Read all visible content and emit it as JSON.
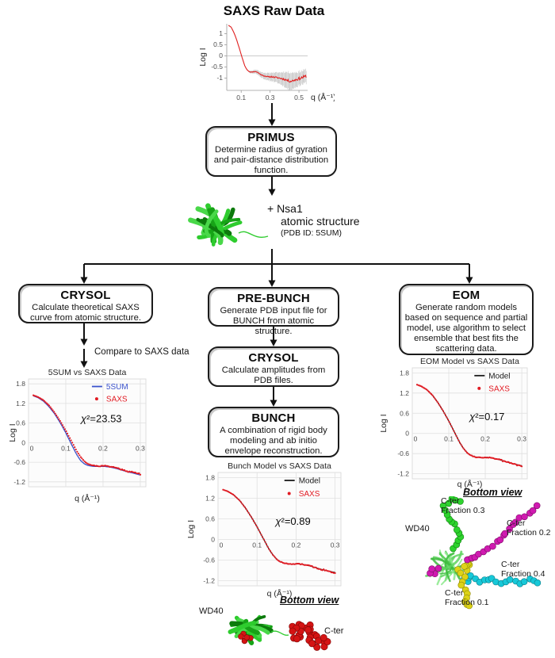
{
  "page": {
    "background": "#ffffff"
  },
  "flow": {
    "nsa1": {
      "line1": "+ Nsa1",
      "line2": "atomic structure",
      "line3": "(PDB ID: 5SUM)"
    },
    "compare_label": "Compare to SAXS data",
    "boxes": {
      "primus": {
        "title": "PRIMUS",
        "body": "Determine radius of gyration and pair-distance distribution function."
      },
      "crysol_left": {
        "title": "CRYSOL",
        "body": "Calculate theoretical SAXS curve from atomic structure."
      },
      "prebunch": {
        "title": "PRE-BUNCH",
        "body": "Generate PDB input file for BUNCH from atomic structure."
      },
      "crysol_mid": {
        "title": "CRYSOL",
        "body": "Calculate amplitudes from PDB files."
      },
      "bunch": {
        "title": "BUNCH",
        "body": "A combination of rigid body modeling and ab initio envelope reconstruction."
      },
      "eom": {
        "title": "EOM",
        "body": "Generate random models based on sequence and partial model, use algorithm to select ensemble that best fits the scattering data."
      }
    }
  },
  "bottom_mid": {
    "view_label": "Bottom view",
    "wd40": "WD40",
    "cter": "C-ter"
  },
  "bottom_right": {
    "view_label": "Bottom view",
    "wd40": "WD40",
    "f03": {
      "line1": "C-ter",
      "line2": "Fraction 0.3"
    },
    "f02": {
      "line1": "C-ter",
      "line2": "Fraction 0.2"
    },
    "f04": {
      "line1": "C-ter",
      "line2": "Fraction 0.4"
    },
    "f01": {
      "line1": "C-ter",
      "line2": "Fraction 0.1"
    }
  },
  "colors": {
    "saxs_red": "#e11b23",
    "model_blue": "#3a52cc",
    "model_black": "#1a1a1a",
    "protein_green_dark": "#17a317",
    "protein_green_light": "#49d849",
    "chain_green": "#2ed32e",
    "chain_magenta": "#d01ab0",
    "chain_cyan": "#17c8d8",
    "chain_yellow": "#ddd316",
    "cter_red": "#d41414"
  },
  "chart_data": [
    {
      "id": "chart-raw",
      "type": "line",
      "style": "raw",
      "title": "SAXS Raw Data",
      "xlabel": "q (Å⁻¹)",
      "ylabel": "Log I",
      "xlim": [
        0,
        0.56
      ],
      "ylim": [
        -1.55,
        1.45
      ],
      "xticks": [
        0.1,
        0.3,
        0.5
      ],
      "yticks": [
        1,
        0.5,
        0,
        -0.5,
        -1
      ],
      "seed": 11,
      "legend": null,
      "chi2_label": null,
      "chi2_pos": null,
      "grid": false,
      "series": [
        {
          "name": "SAXS raw",
          "type": "line",
          "color": "#e02020",
          "width": 1.1,
          "jitter": 0.012,
          "errorbars": true,
          "anchors": [
            [
              0.012,
              1.38
            ],
            [
              0.03,
              1.3
            ],
            [
              0.05,
              1.05
            ],
            [
              0.07,
              0.7
            ],
            [
              0.09,
              0.28
            ],
            [
              0.11,
              -0.15
            ],
            [
              0.125,
              -0.45
            ],
            [
              0.14,
              -0.62
            ],
            [
              0.155,
              -0.7
            ],
            [
              0.17,
              -0.73
            ],
            [
              0.185,
              -0.71
            ],
            [
              0.2,
              -0.7
            ],
            [
              0.215,
              -0.74
            ],
            [
              0.23,
              -0.82
            ],
            [
              0.25,
              -0.88
            ],
            [
              0.27,
              -0.91
            ],
            [
              0.29,
              -0.95
            ],
            [
              0.31,
              -0.93
            ],
            [
              0.33,
              -0.96
            ],
            [
              0.36,
              -0.99
            ],
            [
              0.39,
              -1.03
            ],
            [
              0.42,
              -1.1
            ],
            [
              0.44,
              -1.14
            ],
            [
              0.46,
              -1.11
            ],
            [
              0.48,
              -1.06
            ],
            [
              0.5,
              -1.02
            ],
            [
              0.52,
              -0.98
            ],
            [
              0.55,
              -0.91
            ]
          ]
        }
      ]
    },
    {
      "id": "chart-5sum",
      "type": "line+scatter",
      "style": "excel",
      "title": "5SUM vs SAXS Data",
      "xlabel": "q (Å⁻¹)",
      "ylabel": "Log I",
      "xlim": [
        0,
        0.315
      ],
      "ylim": [
        -1.35,
        1.95
      ],
      "xticks": [
        0,
        0.1,
        0.2,
        0.3
      ],
      "yticks": [
        1.8,
        1.2,
        0.6,
        0,
        -0.6,
        -1.2
      ],
      "seed": 21,
      "grid": true,
      "legend": [
        {
          "label": "5SUM",
          "color": "#3a52cc",
          "marker": "line"
        },
        {
          "label": "SAXS",
          "color": "#e11b23",
          "marker": "dot"
        }
      ],
      "chi2_label": "χ²=23.53",
      "chi2_pos": [
        0.62,
        0.4
      ],
      "series": [
        {
          "name": "5SUM",
          "type": "line",
          "color": "#3a52cc",
          "width": 1.3,
          "anchors": [
            [
              0.013,
              1.43
            ],
            [
              0.025,
              1.38
            ],
            [
              0.04,
              1.27
            ],
            [
              0.055,
              1.1
            ],
            [
              0.07,
              0.88
            ],
            [
              0.085,
              0.61
            ],
            [
              0.1,
              0.3
            ],
            [
              0.115,
              -0.05
            ],
            [
              0.13,
              -0.38
            ],
            [
              0.14,
              -0.55
            ],
            [
              0.15,
              -0.65
            ],
            [
              0.16,
              -0.7
            ],
            [
              0.17,
              -0.72
            ],
            [
              0.18,
              -0.73
            ],
            [
              0.19,
              -0.73
            ],
            [
              0.205,
              -0.73
            ],
            [
              0.22,
              -0.75
            ],
            [
              0.235,
              -0.79
            ],
            [
              0.25,
              -0.84
            ],
            [
              0.265,
              -0.89
            ],
            [
              0.28,
              -0.93
            ],
            [
              0.3,
              -0.99
            ]
          ]
        },
        {
          "name": "SAXS",
          "type": "scatter",
          "color": "#e11b23",
          "jitter": 0.011,
          "anchors": [
            [
              0.013,
              1.45
            ],
            [
              0.025,
              1.4
            ],
            [
              0.04,
              1.3
            ],
            [
              0.055,
              1.14
            ],
            [
              0.07,
              0.92
            ],
            [
              0.085,
              0.66
            ],
            [
              0.1,
              0.37
            ],
            [
              0.115,
              0.05
            ],
            [
              0.13,
              -0.27
            ],
            [
              0.14,
              -0.44
            ],
            [
              0.15,
              -0.57
            ],
            [
              0.16,
              -0.65
            ],
            [
              0.17,
              -0.69
            ],
            [
              0.18,
              -0.71
            ],
            [
              0.19,
              -0.72
            ],
            [
              0.205,
              -0.71
            ],
            [
              0.22,
              -0.73
            ],
            [
              0.235,
              -0.77
            ],
            [
              0.25,
              -0.82
            ],
            [
              0.265,
              -0.87
            ],
            [
              0.28,
              -0.91
            ],
            [
              0.3,
              -0.96
            ]
          ]
        }
      ]
    },
    {
      "id": "chart-bunch",
      "type": "line+scatter",
      "style": "excel",
      "title": "Bunch Model vs SAXS Data",
      "xlabel": "q (Å⁻¹)",
      "ylabel": "Log I",
      "xlim": [
        0,
        0.315
      ],
      "ylim": [
        -1.35,
        1.95
      ],
      "xticks": [
        0,
        0.1,
        0.2,
        0.3
      ],
      "yticks": [
        1.8,
        1.2,
        0.6,
        0,
        -0.6,
        -1.2
      ],
      "seed": 33,
      "grid": true,
      "legend": [
        {
          "label": "Model",
          "color": "#1a1a1a",
          "marker": "line"
        },
        {
          "label": "SAXS",
          "color": "#e11b23",
          "marker": "dot"
        }
      ],
      "chi2_label": "χ²=0.89",
      "chi2_pos": [
        0.61,
        0.46
      ],
      "series": [
        {
          "name": "Model",
          "type": "line",
          "color": "#1a1a1a",
          "width": 1.2,
          "anchors": [
            [
              0.013,
              1.45
            ],
            [
              0.025,
              1.4
            ],
            [
              0.04,
              1.3
            ],
            [
              0.055,
              1.14
            ],
            [
              0.07,
              0.92
            ],
            [
              0.085,
              0.66
            ],
            [
              0.1,
              0.37
            ],
            [
              0.115,
              0.05
            ],
            [
              0.13,
              -0.27
            ],
            [
              0.14,
              -0.44
            ],
            [
              0.15,
              -0.57
            ],
            [
              0.16,
              -0.65
            ],
            [
              0.17,
              -0.69
            ],
            [
              0.18,
              -0.71
            ],
            [
              0.19,
              -0.72
            ],
            [
              0.205,
              -0.71
            ],
            [
              0.22,
              -0.73
            ],
            [
              0.235,
              -0.77
            ],
            [
              0.25,
              -0.82
            ],
            [
              0.265,
              -0.87
            ],
            [
              0.28,
              -0.91
            ],
            [
              0.3,
              -0.96
            ]
          ]
        },
        {
          "name": "SAXS",
          "type": "scatter",
          "color": "#e11b23",
          "jitter": 0.011,
          "anchors": [
            [
              0.013,
              1.45
            ],
            [
              0.025,
              1.4
            ],
            [
              0.04,
              1.3
            ],
            [
              0.055,
              1.14
            ],
            [
              0.07,
              0.92
            ],
            [
              0.085,
              0.66
            ],
            [
              0.1,
              0.37
            ],
            [
              0.115,
              0.05
            ],
            [
              0.13,
              -0.27
            ],
            [
              0.14,
              -0.44
            ],
            [
              0.15,
              -0.57
            ],
            [
              0.16,
              -0.65
            ],
            [
              0.17,
              -0.69
            ],
            [
              0.18,
              -0.71
            ],
            [
              0.19,
              -0.72
            ],
            [
              0.205,
              -0.71
            ],
            [
              0.22,
              -0.73
            ],
            [
              0.235,
              -0.77
            ],
            [
              0.25,
              -0.82
            ],
            [
              0.265,
              -0.87
            ],
            [
              0.28,
              -0.91
            ],
            [
              0.3,
              -0.96
            ]
          ]
        }
      ]
    },
    {
      "id": "chart-eom",
      "type": "line+scatter",
      "style": "excel",
      "title": "EOM Model vs SAXS Data",
      "xlabel": "q (Å⁻¹)",
      "ylabel": "Log I",
      "xlim": [
        0,
        0.315
      ],
      "ylim": [
        -1.35,
        1.95
      ],
      "xticks": [
        0,
        0.1,
        0.2,
        0.3
      ],
      "yticks": [
        1.8,
        1.2,
        0.6,
        0,
        -0.6,
        -1.2
      ],
      "seed": 55,
      "grid": true,
      "legend": [
        {
          "label": "Model",
          "color": "#1a1a1a",
          "marker": "line"
        },
        {
          "label": "SAXS",
          "color": "#e11b23",
          "marker": "dot"
        }
      ],
      "chi2_label": "χ²=0.17",
      "chi2_pos": [
        0.65,
        0.47
      ],
      "series": [
        {
          "name": "Model",
          "type": "line",
          "color": "#1a1a1a",
          "width": 1.2,
          "anchors": [
            [
              0.013,
              1.45
            ],
            [
              0.025,
              1.4
            ],
            [
              0.04,
              1.3
            ],
            [
              0.055,
              1.14
            ],
            [
              0.07,
              0.92
            ],
            [
              0.085,
              0.66
            ],
            [
              0.1,
              0.37
            ],
            [
              0.115,
              0.05
            ],
            [
              0.13,
              -0.27
            ],
            [
              0.14,
              -0.44
            ],
            [
              0.15,
              -0.57
            ],
            [
              0.16,
              -0.65
            ],
            [
              0.17,
              -0.69
            ],
            [
              0.18,
              -0.71
            ],
            [
              0.19,
              -0.72
            ],
            [
              0.205,
              -0.71
            ],
            [
              0.22,
              -0.73
            ],
            [
              0.235,
              -0.77
            ],
            [
              0.25,
              -0.82
            ],
            [
              0.265,
              -0.87
            ],
            [
              0.28,
              -0.91
            ],
            [
              0.3,
              -0.96
            ]
          ]
        },
        {
          "name": "SAXS",
          "type": "scatter",
          "color": "#e11b23",
          "jitter": 0.011,
          "anchors": [
            [
              0.013,
              1.45
            ],
            [
              0.025,
              1.4
            ],
            [
              0.04,
              1.3
            ],
            [
              0.055,
              1.14
            ],
            [
              0.07,
              0.92
            ],
            [
              0.085,
              0.66
            ],
            [
              0.1,
              0.37
            ],
            [
              0.115,
              0.05
            ],
            [
              0.13,
              -0.27
            ],
            [
              0.14,
              -0.44
            ],
            [
              0.15,
              -0.57
            ],
            [
              0.16,
              -0.65
            ],
            [
              0.17,
              -0.69
            ],
            [
              0.18,
              -0.71
            ],
            [
              0.19,
              -0.72
            ],
            [
              0.205,
              -0.71
            ],
            [
              0.22,
              -0.73
            ],
            [
              0.235,
              -0.77
            ],
            [
              0.25,
              -0.82
            ],
            [
              0.265,
              -0.87
            ],
            [
              0.28,
              -0.91
            ],
            [
              0.3,
              -0.96
            ]
          ]
        }
      ]
    }
  ]
}
